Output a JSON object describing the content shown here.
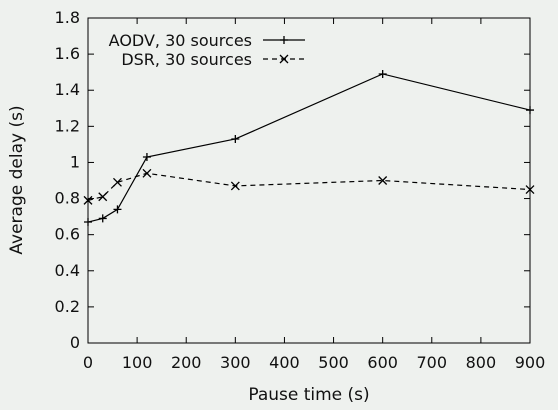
{
  "chart_data": {
    "type": "line",
    "xlabel": "Pause time (s)",
    "ylabel": "Average delay (s)",
    "xlim": [
      0,
      900
    ],
    "ylim": [
      0,
      1.8
    ],
    "xticks": [
      "0",
      "100",
      "200",
      "300",
      "400",
      "500",
      "600",
      "700",
      "800",
      "900"
    ],
    "yticks": [
      "0",
      "0.2",
      "0.4",
      "0.6",
      "0.8",
      "1",
      "1.2",
      "1.4",
      "1.6",
      "1.8"
    ],
    "grid": false,
    "legend_position": "top-left",
    "series": [
      {
        "name": "AODV, 30 sources",
        "line_style": "solid",
        "marker": "plus",
        "x": [
          0,
          30,
          60,
          120,
          300,
          600,
          900
        ],
        "y": [
          0.67,
          0.69,
          0.74,
          1.03,
          1.13,
          1.49,
          1.29
        ]
      },
      {
        "name": "DSR, 30 sources",
        "line_style": "dashed",
        "marker": "cross",
        "x": [
          0,
          30,
          60,
          120,
          300,
          600,
          900
        ],
        "y": [
          0.79,
          0.81,
          0.89,
          0.94,
          0.87,
          0.9,
          0.85
        ]
      }
    ]
  }
}
